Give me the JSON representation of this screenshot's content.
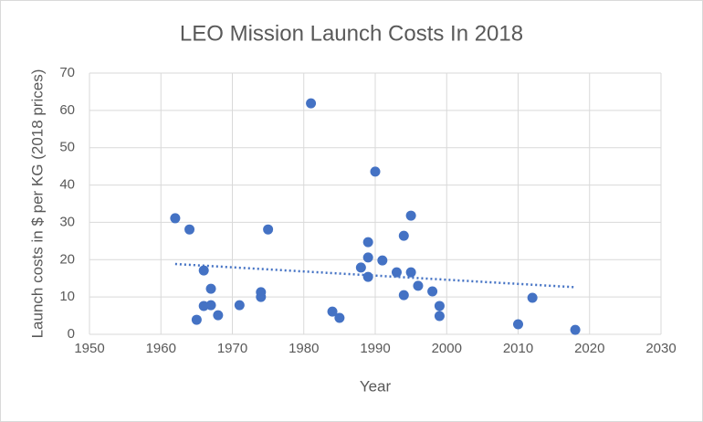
{
  "chart_data": {
    "type": "scatter",
    "title": "LEO Mission Launch Costs In 2018",
    "x_label": "Year",
    "y_label": "Launch costs in $ per KG (2018 prices)",
    "color": "#4472c4",
    "trendline": "linear",
    "grid": true,
    "x": [
      1962,
      1964,
      1966,
      1965,
      1966,
      1967,
      1967,
      1968,
      1971,
      1974,
      1974,
      1975,
      1981,
      1984,
      1985,
      1988,
      1989,
      1989,
      1989,
      1990,
      1991,
      1993,
      1994,
      1994,
      1995,
      1995,
      1996,
      1998,
      1999,
      1999,
      2010,
      2012,
      2018
    ],
    "values": [
      31.1,
      28.1,
      17.1,
      3.9,
      7.6,
      12.2,
      7.8,
      5.1,
      7.8,
      11.3,
      10.0,
      28.1,
      61.9,
      6.1,
      4.4,
      17.9,
      24.7,
      20.6,
      15.4,
      43.6,
      19.8,
      16.6,
      26.4,
      10.5,
      31.8,
      16.6,
      13.0,
      11.5,
      7.6,
      4.9,
      2.7,
      9.8,
      1.2
    ],
    "xlim": [
      1950,
      2030
    ],
    "xticks": [
      1950,
      1960,
      1970,
      1980,
      1990,
      2000,
      2010,
      2020,
      2030
    ],
    "ylim": [
      0,
      70
    ],
    "yticks": [
      0,
      10,
      20,
      30,
      40,
      50,
      60,
      70
    ]
  }
}
